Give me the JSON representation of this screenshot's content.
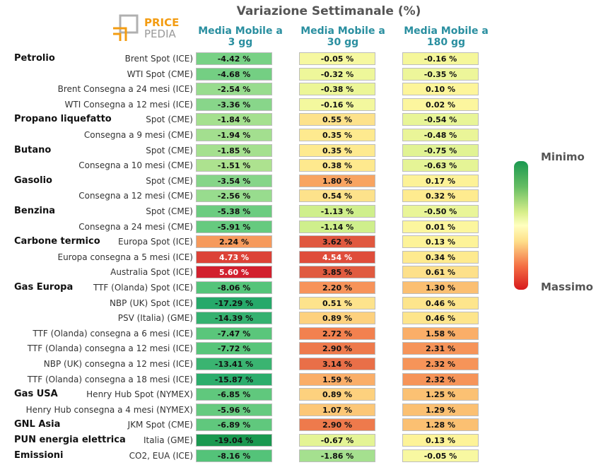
{
  "chart_data": {
    "type": "table",
    "title": "Variazione Settimanale (%)",
    "columns": [
      [
        "Media Mobile a",
        "3 gg"
      ],
      [
        "Media Mobile a",
        "30 gg"
      ],
      [
        "Media Mobile a",
        "180 gg"
      ]
    ],
    "legend": {
      "min": "Minimo",
      "max": "Massimo"
    },
    "logo": {
      "top": "PRICE",
      "bottom": "PEDIA"
    },
    "rows": [
      {
        "group": "Petrolio",
        "label": "Brent Spot (ICE)",
        "values": [
          -4.42,
          -0.05,
          -0.16
        ],
        "colors": [
          "#78d185",
          "#f6f8a0",
          "#f5f79a"
        ]
      },
      {
        "group": "",
        "label": "WTI Spot (CME)",
        "values": [
          -4.68,
          -0.32,
          -0.35
        ],
        "colors": [
          "#74cf83",
          "#eef79a",
          "#edf69a"
        ]
      },
      {
        "group": "",
        "label": "Brent Consegna a 24 mesi (ICE)",
        "values": [
          -2.54,
          -0.38,
          0.1
        ],
        "colors": [
          "#98dc8e",
          "#ecf697",
          "#fdf59a"
        ]
      },
      {
        "group": "",
        "label": "WTI Consegna a 12 mesi (ICE)",
        "values": [
          -3.36,
          -0.16,
          0.02
        ],
        "colors": [
          "#88d68a",
          "#f3f89e",
          "#fcf69e"
        ]
      },
      {
        "group": "Propano liquefatto",
        "label": "Spot (CME)",
        "values": [
          -1.84,
          0.55,
          -0.54
        ],
        "colors": [
          "#a5e08f",
          "#fde28b",
          "#e8f597"
        ]
      },
      {
        "group": "",
        "label": "Consegna a 9 mesi (CME)",
        "values": [
          -1.94,
          0.35,
          -0.48
        ],
        "colors": [
          "#a3df8f",
          "#feea8f",
          "#eaf598"
        ]
      },
      {
        "group": "Butano",
        "label": "Spot (CME)",
        "values": [
          -1.85,
          0.35,
          -0.75
        ],
        "colors": [
          "#a5e08f",
          "#feea8f",
          "#e1f394"
        ]
      },
      {
        "group": "",
        "label": "Consegna a 10 mesi (CME)",
        "values": [
          -1.51,
          0.38,
          -0.63
        ],
        "colors": [
          "#ade28f",
          "#fee98e",
          "#e5f496"
        ]
      },
      {
        "group": "Gasolio",
        "label": "Spot (CME)",
        "values": [
          -3.54,
          1.8,
          0.17
        ],
        "colors": [
          "#86d589",
          "#f8a461",
          "#fdf297"
        ]
      },
      {
        "group": "",
        "label": "Consegna a 12 mesi (CME)",
        "values": [
          -2.56,
          0.54,
          0.32
        ],
        "colors": [
          "#98dc8e",
          "#fde28b",
          "#feeb8f"
        ]
      },
      {
        "group": "Benzina",
        "label": "Spot (CME)",
        "values": [
          -5.38,
          -1.13,
          -0.5
        ],
        "colors": [
          "#6ccc80",
          "#cfef8c",
          "#e9f598"
        ]
      },
      {
        "group": "",
        "label": "Consegna a 24 mesi (CME)",
        "values": [
          -5.91,
          -1.14,
          0.01
        ],
        "colors": [
          "#66ca7f",
          "#cfef8c",
          "#fcf69e"
        ]
      },
      {
        "group": "Carbone termico",
        "label": "Europa Spot (ICE)",
        "values": [
          2.24,
          3.62,
          0.13
        ],
        "colors": [
          "#f69a5c",
          "#e0583f",
          "#fdf398"
        ]
      },
      {
        "group": "",
        "label": "Europa consegna a 5 mesi (ICE)",
        "values": [
          4.73,
          4.54,
          0.34
        ],
        "colors": [
          "#dc4237",
          "#df4d3b",
          "#feea8f"
        ]
      },
      {
        "group": "",
        "label": "Australia Spot (ICE)",
        "values": [
          5.6,
          3.85,
          0.61
        ],
        "colors": [
          "#d2202e",
          "#e05b40",
          "#fde08a"
        ]
      },
      {
        "group": "Gas Europa",
        "label": "TTF (Olanda) Spot (ICE)",
        "values": [
          -8.06,
          2.2,
          1.3
        ],
        "colors": [
          "#55c47a",
          "#f7935a",
          "#fbbf72"
        ]
      },
      {
        "group": "",
        "label": "NBP (UK) Spot (ICE)",
        "values": [
          -17.29,
          0.51,
          0.46
        ],
        "colors": [
          "#26a96a",
          "#fde38c",
          "#fde58c"
        ]
      },
      {
        "group": "",
        "label": "PSV (Italia) (GME)",
        "values": [
          -14.39,
          0.89,
          0.46
        ],
        "colors": [
          "#35b170",
          "#fdd17e",
          "#fde58c"
        ]
      },
      {
        "group": "",
        "label": "TTF (Olanda) consegna a 6 mesi (ICE)",
        "values": [
          -7.47,
          2.72,
          1.58
        ],
        "colors": [
          "#5ac67b",
          "#f2814f",
          "#faae68"
        ]
      },
      {
        "group": "",
        "label": "TTF (Olanda) consegna a 12 mesi (ICE)",
        "values": [
          -7.72,
          2.9,
          2.31
        ],
        "colors": [
          "#58c57a",
          "#ee7a4c",
          "#f69459"
        ]
      },
      {
        "group": "",
        "label": "NBP (UK) consegna a 12 mesi (ICE)",
        "values": [
          -13.41,
          3.14,
          2.32
        ],
        "colors": [
          "#3ab471",
          "#e96f48",
          "#f69459"
        ]
      },
      {
        "group": "",
        "label": "TTF (Olanda) consegna a 18 mesi (ICE)",
        "values": [
          -15.87,
          1.59,
          2.32
        ],
        "colors": [
          "#2cad6c",
          "#faae68",
          "#f69459"
        ]
      },
      {
        "group": "Gas USA",
        "label": "Henry Hub Spot (NYMEX)",
        "values": [
          -6.85,
          0.89,
          1.25
        ],
        "colors": [
          "#60c87d",
          "#fdd17e",
          "#fbc173"
        ]
      },
      {
        "group": "",
        "label": "Henry Hub consegna a 4 mesi (NYMEX)",
        "values": [
          -5.96,
          1.07,
          1.29
        ],
        "colors": [
          "#66ca7f",
          "#fcc777",
          "#fbc072"
        ]
      },
      {
        "group": "GNL Asia",
        "label": "JKM Spot (CME)",
        "values": [
          -6.89,
          2.9,
          1.28
        ],
        "colors": [
          "#60c87d",
          "#ee7a4c",
          "#fbc072"
        ]
      },
      {
        "group": "PUN energia elettrica",
        "label": "Italia (GME)",
        "values": [
          -19.04,
          -0.67,
          0.13
        ],
        "colors": [
          "#1a9850",
          "#e4f495",
          "#fdf398"
        ]
      },
      {
        "group": "Emissioni",
        "label": "CO2, EUA (ICE)",
        "values": [
          -8.16,
          -1.86,
          -0.05
        ],
        "colors": [
          "#54c379",
          "#a5e08f",
          "#f8f8a1"
        ]
      }
    ]
  }
}
